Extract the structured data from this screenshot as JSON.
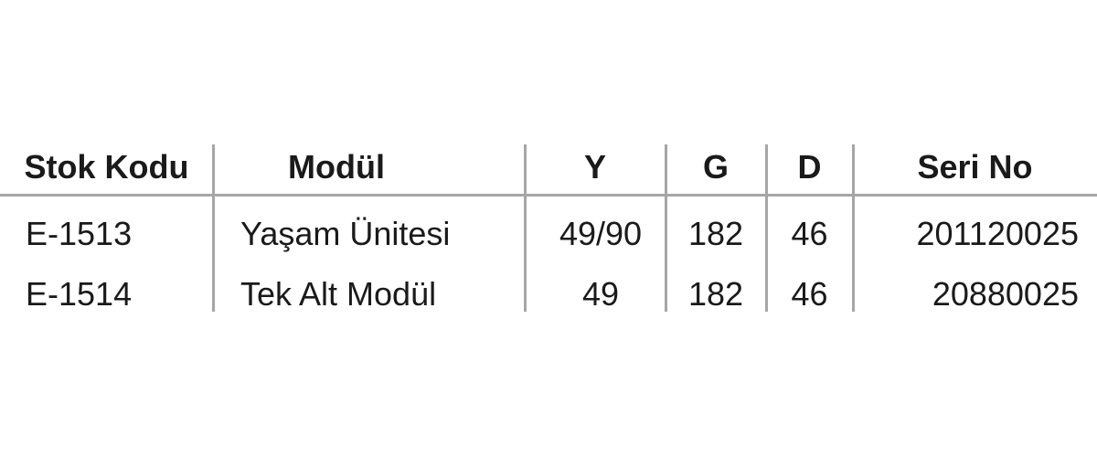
{
  "table": {
    "headers": [
      "Stok Kodu",
      "Modül",
      "Y",
      "G",
      "D",
      "Seri No"
    ],
    "rows": [
      [
        "E-1513",
        "Yaşam Ünitesi",
        "49/90",
        "182",
        "46",
        "201120025"
      ],
      [
        "E-1514",
        "Tek Alt Modül",
        "49",
        "182",
        "46",
        "20880025"
      ]
    ],
    "line_color": "#a6a6a6",
    "text_color": "#1a1a1a"
  }
}
